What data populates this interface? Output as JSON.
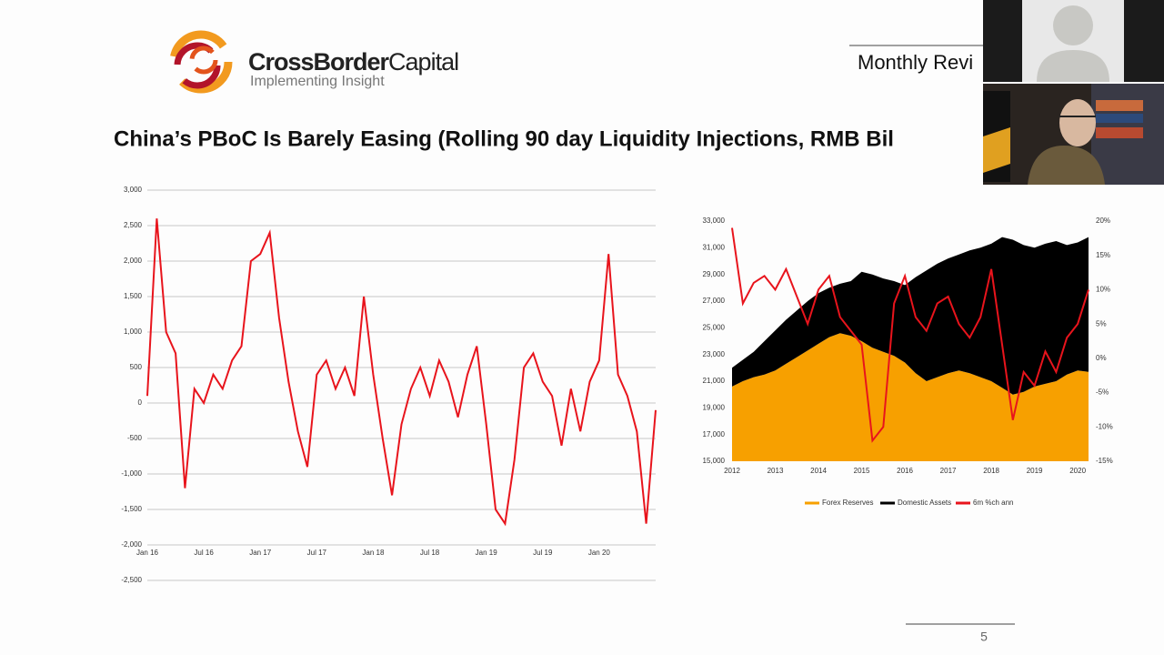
{
  "slide": {
    "logo_name": "CrossBorder",
    "logo_suffix": "Capital",
    "tagline": "Implementing Insight",
    "header": "Monthly Revi",
    "title": "China’s PBoC Is Barely Easing (Rolling 90 day Liquidity Injections, RMB Bil",
    "page_number": "5"
  },
  "chart_data": [
    {
      "type": "line",
      "color": "#e8141c",
      "grid": true,
      "categories": [
        "Jan 16",
        null,
        null,
        null,
        null,
        null,
        "Jul 16",
        null,
        null,
        null,
        null,
        null,
        "Jan 17",
        null,
        null,
        null,
        null,
        null,
        "Jul 17",
        null,
        null,
        null,
        null,
        null,
        "Jan 18",
        null,
        null,
        null,
        null,
        null,
        "Jul 18",
        null,
        null,
        null,
        null,
        null,
        "Jan 19",
        null,
        null,
        null,
        null,
        null,
        "Jul 19",
        null,
        null,
        null,
        null,
        null,
        "Jan 20",
        null,
        null,
        null,
        null,
        null,
        null
      ],
      "values": [
        100,
        2600,
        1000,
        700,
        -1200,
        200,
        0,
        400,
        200,
        600,
        800,
        2000,
        2100,
        2400,
        1200,
        300,
        -400,
        -900,
        400,
        600,
        200,
        500,
        100,
        1500,
        400,
        -500,
        -1300,
        -300,
        200,
        500,
        100,
        600,
        300,
        -200,
        400,
        800,
        -300,
        -1500,
        -1700,
        -800,
        500,
        700,
        300,
        100,
        -600,
        200,
        -400,
        300,
        600,
        2100,
        400,
        100,
        -400,
        -1700,
        -100
      ],
      "ylim": [
        -2500,
        3000
      ],
      "yticks": [
        {
          "value": -2500,
          "label": "-2,500"
        },
        {
          "value": -2000,
          "label": "-2,000"
        },
        {
          "value": -1500,
          "label": "-1,500"
        },
        {
          "value": -1000,
          "label": "-1,000"
        },
        -500,
        0,
        500,
        {
          "value": 1000,
          "label": "1,000"
        },
        {
          "value": 1500,
          "label": "1,500"
        },
        {
          "value": 2000,
          "label": "2,000"
        },
        {
          "value": 2500,
          "label": "2,500"
        },
        {
          "value": 3000,
          "label": "3,000"
        }
      ]
    },
    {
      "type": "area",
      "stacked": true,
      "legend": "bottom",
      "x": [
        2012,
        2012.25,
        2012.5,
        2012.75,
        2013,
        2013.25,
        2013.5,
        2013.75,
        2014,
        2014.25,
        2014.5,
        2014.75,
        2015,
        2015.25,
        2015.5,
        2015.75,
        2016,
        2016.25,
        2016.5,
        2016.75,
        2017,
        2017.25,
        2017.5,
        2017.75,
        2018,
        2018.25,
        2018.5,
        2018.75,
        2019,
        2019.25,
        2019.5,
        2019.75,
        2020,
        2020.25
      ],
      "xlim": [
        2012,
        2020.25
      ],
      "xticks": [
        2012,
        2013,
        2014,
        2015,
        2016,
        2017,
        2018,
        2019,
        2020
      ],
      "ylim": [
        15000,
        33000
      ],
      "yticks": [
        {
          "value": 15000,
          "label": "15,000"
        },
        {
          "value": 17000,
          "label": "17,000"
        },
        {
          "value": 19000,
          "label": "19,000"
        },
        {
          "value": 21000,
          "label": "21,000"
        },
        {
          "value": 23000,
          "label": "23,000"
        },
        {
          "value": 25000,
          "label": "25,000"
        },
        {
          "value": 27000,
          "label": "27,000"
        },
        {
          "value": 29000,
          "label": "29,000"
        },
        {
          "value": 31000,
          "label": "31,000"
        },
        {
          "value": 33000,
          "label": "33,000"
        }
      ],
      "y2lim": [
        -15,
        20
      ],
      "y2ticks": [
        {
          "value": -15,
          "label": "-15%"
        },
        {
          "value": -10,
          "label": "-10%"
        },
        {
          "value": -5,
          "label": "-5%"
        },
        {
          "value": 0,
          "label": "0%"
        },
        {
          "value": 5,
          "label": "5%"
        },
        {
          "value": 10,
          "label": "10%"
        },
        {
          "value": 15,
          "label": "15%"
        },
        {
          "value": 20,
          "label": "20%"
        }
      ],
      "series": [
        {
          "name": "Forex Reserves",
          "color": "#f7a000",
          "values": [
            20600,
            21000,
            21300,
            21500,
            21800,
            22300,
            22800,
            23300,
            23800,
            24300,
            24600,
            24400,
            24000,
            23500,
            23200,
            22900,
            22400,
            21600,
            21000,
            21300,
            21600,
            21800,
            21600,
            21300,
            21000,
            20500,
            20000,
            20200,
            20600,
            20800,
            21000,
            21500,
            21800,
            21700
          ]
        },
        {
          "name": "Domestic Assets",
          "color": "#000000",
          "values": [
            1400,
            1600,
            1900,
            2500,
            3000,
            3300,
            3500,
            3700,
            3800,
            3700,
            3700,
            4100,
            5200,
            5500,
            5500,
            5600,
            5800,
            7200,
            8300,
            8500,
            8600,
            8700,
            9200,
            9700,
            10300,
            11300,
            11600,
            11000,
            10400,
            10500,
            10500,
            9700,
            9600,
            10100
          ]
        },
        {
          "name": "6m %ch ann",
          "color": "#e8141c",
          "axis": "y2",
          "values": [
            19,
            8,
            11,
            12,
            10,
            13,
            9,
            5,
            10,
            12,
            6,
            4,
            2,
            -12,
            -10,
            8,
            12,
            6,
            4,
            8,
            9,
            5,
            3,
            6,
            13,
            2,
            -9,
            -2,
            -4,
            1,
            -2,
            3,
            5,
            10
          ]
        }
      ]
    }
  ]
}
